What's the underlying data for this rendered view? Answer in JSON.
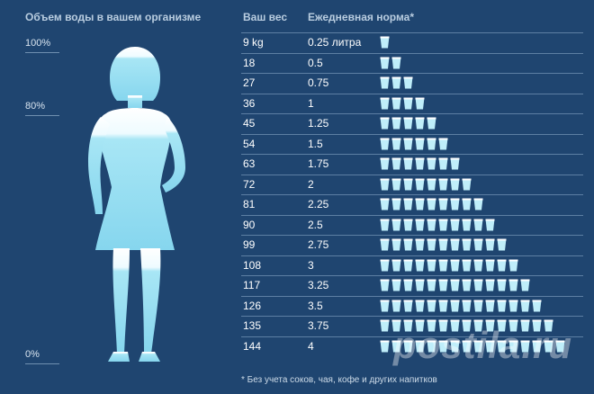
{
  "left": {
    "title": "Объем воды в вашем организме",
    "levels": [
      {
        "label": "100%"
      },
      {
        "label": "80%"
      },
      {
        "label": "0%"
      }
    ]
  },
  "table": {
    "header_weight": "Ваш вес",
    "header_norm": "Ежедневная норма*",
    "rows": [
      {
        "weight": "9 kg",
        "norm": "0.25 литра",
        "cups": 1
      },
      {
        "weight": "18",
        "norm": "0.5",
        "cups": 2
      },
      {
        "weight": "27",
        "norm": "0.75",
        "cups": 3
      },
      {
        "weight": "36",
        "norm": "1",
        "cups": 4
      },
      {
        "weight": "45",
        "norm": "1.25",
        "cups": 5
      },
      {
        "weight": "54",
        "norm": "1.5",
        "cups": 6
      },
      {
        "weight": "63",
        "norm": "1.75",
        "cups": 7
      },
      {
        "weight": "72",
        "norm": "2",
        "cups": 8
      },
      {
        "weight": "81",
        "norm": "2.25",
        "cups": 9
      },
      {
        "weight": "90",
        "norm": "2.5",
        "cups": 10
      },
      {
        "weight": "99",
        "norm": "2.75",
        "cups": 11
      },
      {
        "weight": "108",
        "norm": "3",
        "cups": 12
      },
      {
        "weight": "117",
        "norm": "3.25",
        "cups": 13
      },
      {
        "weight": "126",
        "norm": "3.5",
        "cups": 14
      },
      {
        "weight": "135",
        "norm": "3.75",
        "cups": 15
      },
      {
        "weight": "144",
        "norm": "4",
        "cups": 16
      }
    ],
    "footnote": "* Без учета соков, чая, кофе и других напитков"
  },
  "watermark": "postila.ru",
  "colors": {
    "background": "#1f4570",
    "water": "#a8e6f5",
    "water_light": "#dff6fc",
    "cup": "#bfeefa"
  }
}
